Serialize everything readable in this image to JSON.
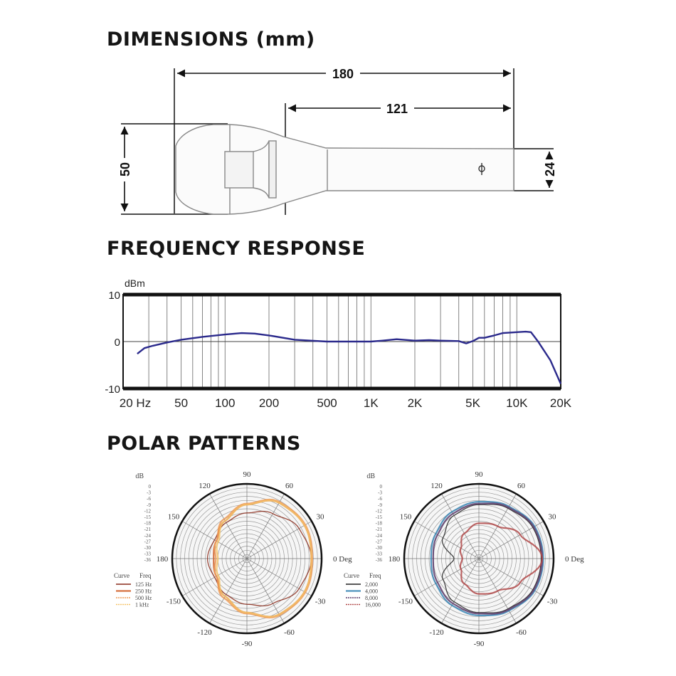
{
  "sections": {
    "dimensions": {
      "title": "DIMENSIONS (mm)",
      "overall_length": "180",
      "handle_length": "121",
      "head_diameter": "50",
      "handle_diameter": "24"
    },
    "frequency": {
      "title": "FREQUENCY RESPONSE"
    },
    "polar": {
      "title": "POLAR PATTERNS"
    }
  },
  "chart_data": [
    {
      "type": "line",
      "ylabel": "dBm",
      "xscale": "log",
      "xlim": [
        20,
        20000
      ],
      "ylim": [
        -10,
        10
      ],
      "yticks": [
        "10",
        "0",
        "-10"
      ],
      "xticks": [
        {
          "v": 20,
          "label": "20 Hz"
        },
        {
          "v": 50,
          "label": "50"
        },
        {
          "v": 100,
          "label": "100"
        },
        {
          "v": 200,
          "label": "200"
        },
        {
          "v": 500,
          "label": "500"
        },
        {
          "v": 1000,
          "label": "1K"
        },
        {
          "v": 2000,
          "label": "2K"
        },
        {
          "v": 5000,
          "label": "5K"
        },
        {
          "v": 10000,
          "label": "10K"
        },
        {
          "v": 20000,
          "label": "20K"
        }
      ],
      "grid": true,
      "line_color": "#2b2a8c",
      "x": [
        25,
        28,
        32,
        40,
        50,
        70,
        100,
        130,
        160,
        200,
        300,
        500,
        1000,
        1200,
        1500,
        2000,
        2500,
        3000,
        4000,
        4500,
        5000,
        5500,
        6000,
        7000,
        8000,
        10000,
        11500,
        12500,
        14000,
        17000,
        20000
      ],
      "y": [
        -2.6,
        -1.4,
        -0.9,
        -0.2,
        0.4,
        1.0,
        1.5,
        1.8,
        1.7,
        1.3,
        0.4,
        0.0,
        0.0,
        0.2,
        0.5,
        0.2,
        0.3,
        0.2,
        0.1,
        -0.4,
        0.1,
        0.8,
        0.8,
        1.3,
        1.8,
        2.0,
        2.1,
        2.0,
        0.0,
        -4.0,
        -9.0
      ]
    },
    {
      "type": "polar",
      "scale_label": "dB",
      "scale_ticks": [
        "0",
        "-3",
        "-6",
        "-9",
        "-12",
        "-15",
        "-18",
        "-21",
        "-24",
        "-27",
        "-30",
        "-33",
        "-36"
      ],
      "angle_labels": [
        "0 Deg",
        "30",
        "60",
        "90",
        "120",
        "150",
        "180",
        "-150",
        "-120",
        "-90",
        "-60",
        "-30"
      ],
      "legend_headers": [
        "Curve",
        "Freq"
      ],
      "angles": [
        0,
        30,
        60,
        90,
        120,
        150,
        180,
        210,
        240,
        270,
        300,
        330
      ],
      "series": [
        {
          "name": "125 Hz",
          "color": "#8a2a1a",
          "values": [
            -5,
            -7,
            -11,
            -14,
            -16,
            -18,
            -17,
            -18,
            -16,
            -14,
            -11,
            -7
          ]
        },
        {
          "name": "250 Hz",
          "color": "#d2602a",
          "values": [
            -5,
            -4,
            -5,
            -10,
            -15,
            -19,
            -20,
            -19,
            -15,
            -10,
            -5,
            -4
          ]
        },
        {
          "name": "500 Hz",
          "color": "#ef9a55",
          "values": [
            -4.5,
            -3.5,
            -4.5,
            -9.5,
            -14,
            -19,
            -21,
            -19,
            -14,
            -9.5,
            -4.5,
            -3.5
          ]
        },
        {
          "name": "1 kHz",
          "color": "#f5c46a",
          "values": [
            -5,
            -4,
            -5,
            -10,
            -15,
            -20,
            -22,
            -20,
            -15,
            -10,
            -5,
            -4
          ]
        }
      ]
    },
    {
      "type": "polar",
      "scale_label": "dB",
      "scale_ticks": [
        "0",
        "-3",
        "-6",
        "-9",
        "-12",
        "-15",
        "-18",
        "-21",
        "-24",
        "-27",
        "-30",
        "-33",
        "-36"
      ],
      "angle_labels": [
        "0 Deg",
        "30",
        "60",
        "90",
        "120",
        "150",
        "180",
        "-150",
        "-120",
        "-90",
        "-60",
        "-30"
      ],
      "legend_headers": [
        "Curve",
        "Freq"
      ],
      "angles": [
        0,
        30,
        60,
        90,
        120,
        150,
        180,
        210,
        240,
        270,
        300,
        330
      ],
      "series": [
        {
          "name": "2,000",
          "color": "#222222",
          "values": [
            -6,
            -6,
            -8,
            -10,
            -12,
            -16,
            -24,
            -16,
            -12,
            -10,
            -8,
            -6
          ]
        },
        {
          "name": "4,000",
          "color": "#3a86b5",
          "values": [
            -5,
            -5,
            -7,
            -8.6,
            -10,
            -12,
            -13,
            -12,
            -10,
            -8.6,
            -7,
            -5
          ]
        },
        {
          "name": "8,000",
          "color": "#5a3a6a",
          "values": [
            -5.5,
            -5.5,
            -7.5,
            -9.5,
            -11,
            -13,
            -14,
            -13,
            -11,
            -9.5,
            -7.5,
            -5.5
          ]
        },
        {
          "name": "16,000",
          "color": "#b24a4a",
          "values": [
            -5.5,
            -13,
            -18,
            -19,
            -22,
            -26,
            -28,
            -26,
            -22,
            -19,
            -18,
            -13
          ]
        }
      ]
    }
  ]
}
